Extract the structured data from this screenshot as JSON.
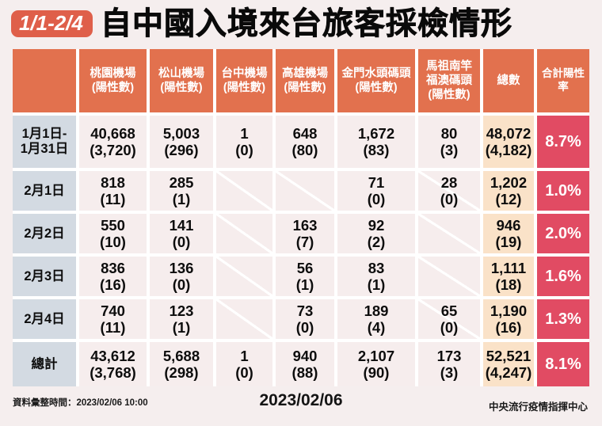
{
  "title": {
    "badge": "1/1-2/4",
    "text": "自中國入境來台旅客採檢情形"
  },
  "footer": {
    "compiled_time": "資料彙整時間：2023/02/06  10:00",
    "date": "2023/02/06",
    "agency": "中央流行疫情指揮中心"
  },
  "colors": {
    "header": "#E2714E",
    "badge": "#DF5F4A",
    "row_label": "#D3DAE2",
    "data_cell": "#F6EDED",
    "total_col": "#FAE2C8",
    "rate_col": "#E14B63",
    "page_bg": "#F5EEEE"
  },
  "chart_data": {
    "type": "table",
    "title": "自中國入境來台旅客採檢情形",
    "period": "1/1-2/4",
    "note": "values are arrivals tested, parentheses are positive counts; diagonal slash = no service/no data",
    "header": {
      "corner": "",
      "cols": [
        {
          "l1": "桃園機場",
          "l2": "(陽性數)",
          "l3": ""
        },
        {
          "l1": "松山機場",
          "l2": "(陽性數)",
          "l3": ""
        },
        {
          "l1": "台中機場",
          "l2": "(陽性數)",
          "l3": ""
        },
        {
          "l1": "高雄機場",
          "l2": "(陽性數)",
          "l3": ""
        },
        {
          "l1": "金門水頭碼頭",
          "l2": "(陽性數)",
          "l3": ""
        },
        {
          "l1": "馬祖南竿",
          "l2": "福澳碼頭",
          "l3": "(陽性數)"
        },
        {
          "l1": "總數",
          "l2": "",
          "l3": ""
        },
        {
          "l1": "合計陽性率",
          "l2": "",
          "l3": ""
        }
      ]
    },
    "rows": [
      {
        "label1": "1月1日-",
        "label2": "1月31日",
        "cells": [
          {
            "v": "40,668",
            "p": "(3,720)"
          },
          {
            "v": "5,003",
            "p": "(296)"
          },
          {
            "v": "1",
            "p": "(0)"
          },
          {
            "v": "648",
            "p": "(80)"
          },
          {
            "v": "1,672",
            "p": "(83)"
          },
          {
            "v": "80",
            "p": "(3)"
          },
          {
            "v": "48,072",
            "p": "(4,182)"
          }
        ],
        "rate": "8.7%"
      },
      {
        "label1": "2月1日",
        "label2": "",
        "cells": [
          {
            "v": "818",
            "p": "(11)"
          },
          {
            "v": "285",
            "p": "(1)"
          },
          {
            "v": "",
            "p": "",
            "slash": true
          },
          {
            "v": "",
            "p": "",
            "slash": true
          },
          {
            "v": "71",
            "p": "(0)"
          },
          {
            "v": "28",
            "p": "(0)",
            "slash": true
          },
          {
            "v": "1,202",
            "p": "(12)"
          }
        ],
        "rate": "1.0%"
      },
      {
        "label1": "2月2日",
        "label2": "",
        "cells": [
          {
            "v": "550",
            "p": "(10)"
          },
          {
            "v": "141",
            "p": "(0)"
          },
          {
            "v": "",
            "p": "",
            "slash": true
          },
          {
            "v": "163",
            "p": "(7)"
          },
          {
            "v": "92",
            "p": "(2)"
          },
          {
            "v": "",
            "p": "",
            "slash": true
          },
          {
            "v": "946",
            "p": "(19)"
          }
        ],
        "rate": "2.0%"
      },
      {
        "label1": "2月3日",
        "label2": "",
        "cells": [
          {
            "v": "836",
            "p": "(16)"
          },
          {
            "v": "136",
            "p": "(0)"
          },
          {
            "v": "",
            "p": "",
            "slash": true
          },
          {
            "v": "56",
            "p": "(1)"
          },
          {
            "v": "83",
            "p": "(1)"
          },
          {
            "v": "",
            "p": "",
            "slash": true
          },
          {
            "v": "1,111",
            "p": "(18)"
          }
        ],
        "rate": "1.6%"
      },
      {
        "label1": "2月4日",
        "label2": "",
        "cells": [
          {
            "v": "740",
            "p": "(11)"
          },
          {
            "v": "123",
            "p": "(1)"
          },
          {
            "v": "",
            "p": "",
            "slash": true
          },
          {
            "v": "73",
            "p": "(0)"
          },
          {
            "v": "189",
            "p": "(4)"
          },
          {
            "v": "65",
            "p": "(0)",
            "slash": true
          },
          {
            "v": "1,190",
            "p": "(16)"
          }
        ],
        "rate": "1.3%"
      },
      {
        "label1": "總計",
        "label2": "",
        "cells": [
          {
            "v": "43,612",
            "p": "(3,768)"
          },
          {
            "v": "5,688",
            "p": "(298)"
          },
          {
            "v": "1",
            "p": "(0)"
          },
          {
            "v": "940",
            "p": "(88)"
          },
          {
            "v": "2,107",
            "p": "(90)"
          },
          {
            "v": "173",
            "p": "(3)"
          },
          {
            "v": "52,521",
            "p": "(4,247)"
          }
        ],
        "rate": "8.1%"
      }
    ]
  }
}
